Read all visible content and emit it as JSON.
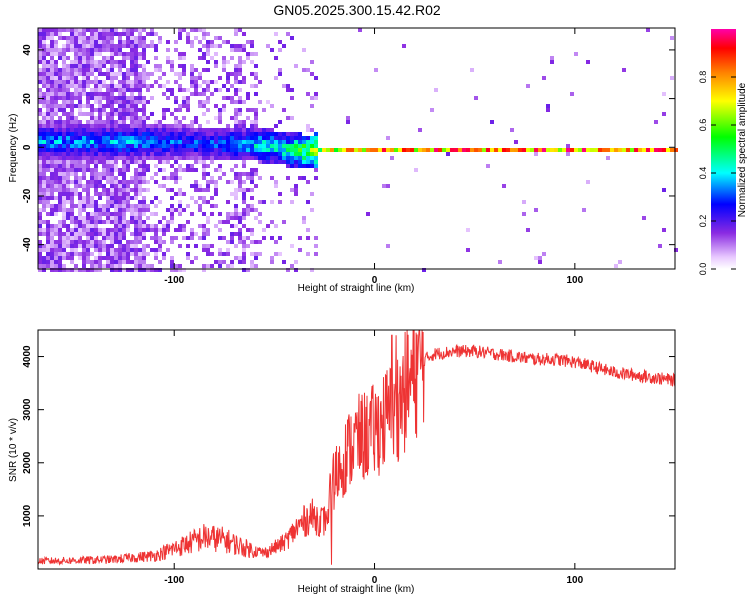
{
  "chart_data": [
    {
      "type": "heatmap",
      "title": "GN05.2025.300.15.42.R02",
      "xlabel": "Height of straight line (km)",
      "ylabel": "Frequency (Hz)",
      "xlim": [
        -168,
        150
      ],
      "ylim": [
        -50,
        49
      ],
      "xticks": [
        -100,
        0,
        100
      ],
      "yticks": [
        -40,
        -20,
        0,
        20,
        40
      ],
      "colorbar": {
        "label": "Normalized spectral amplitude",
        "range": [
          0,
          1
        ],
        "ticks": [
          "0.0",
          "0.2",
          "0.4",
          "0.6",
          "0.8"
        ]
      },
      "ridge": {
        "description_points_x": [
          -120,
          -100,
          -80,
          -60,
          -45,
          -35,
          -20,
          0,
          50,
          100,
          150
        ],
        "frequency_hz": [
          3,
          3,
          2,
          2,
          0,
          -1,
          0,
          0,
          0,
          0,
          0
        ],
        "amplitude": [
          0.35,
          0.3,
          0.3,
          0.4,
          0.45,
          0.6,
          0.8,
          0.9,
          0.95,
          0.95,
          0.95
        ]
      }
    },
    {
      "type": "line",
      "title": "",
      "xlabel": "Height of straight line (km)",
      "ylabel": "SNR (10 * v/v)",
      "xlim": [
        -168,
        150
      ],
      "ylim": [
        0,
        4500
      ],
      "xticks": [
        -100,
        0,
        100
      ],
      "yticks": [
        1000,
        2000,
        3000,
        4000
      ],
      "color": "#ee3333",
      "series": [
        {
          "name": "SNR",
          "x": [
            -168,
            -150,
            -130,
            -110,
            -95,
            -85,
            -75,
            -65,
            -55,
            -45,
            -38,
            -32,
            -25,
            -20,
            -15,
            -10,
            -5,
            0,
            5,
            10,
            15,
            20,
            25,
            30,
            40,
            50,
            60,
            70,
            80,
            90,
            100,
            110,
            120,
            130,
            140,
            150
          ],
          "y": [
            150,
            160,
            180,
            250,
            450,
            600,
            550,
            400,
            300,
            500,
            800,
            1000,
            900,
            1700,
            2100,
            2400,
            2500,
            2600,
            2800,
            3000,
            3300,
            3700,
            3950,
            4050,
            4100,
            4100,
            4050,
            4000,
            3950,
            3950,
            3900,
            3800,
            3700,
            3650,
            3600,
            3550
          ]
        }
      ]
    }
  ]
}
